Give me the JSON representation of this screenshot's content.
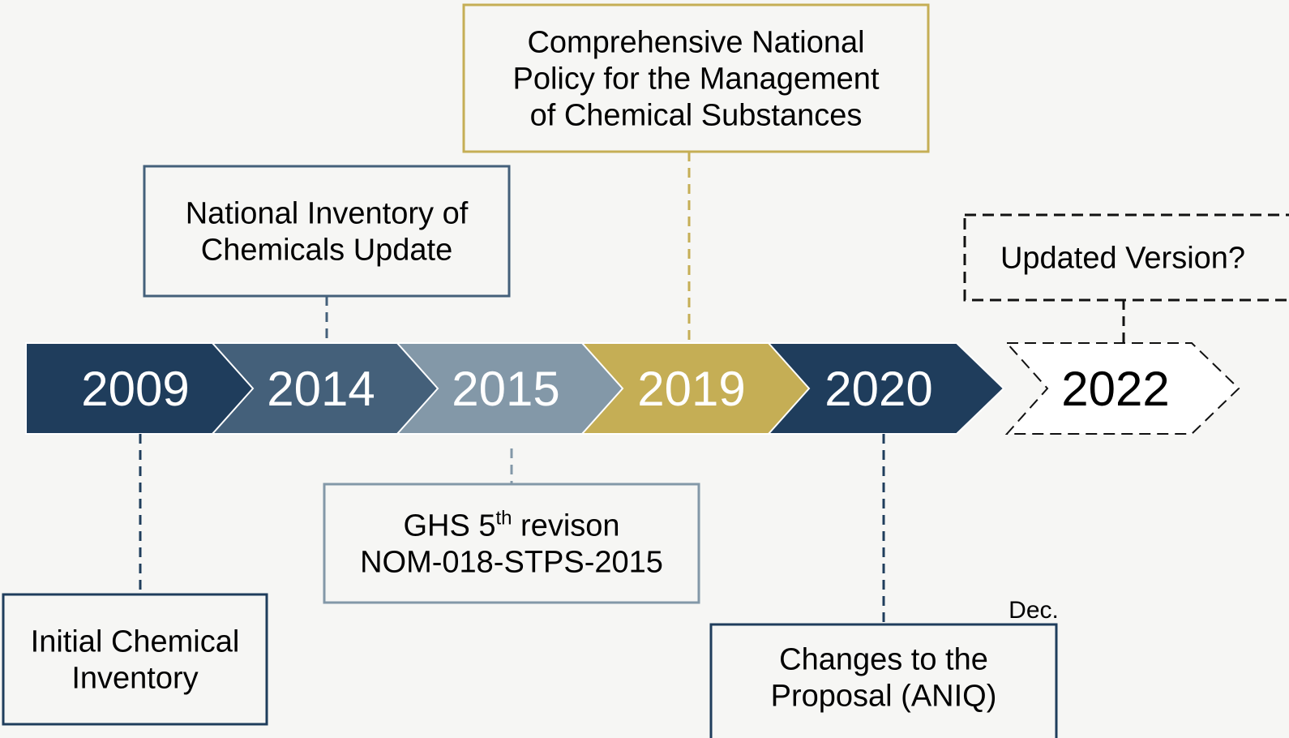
{
  "timeline": {
    "years": [
      "2009",
      "2014",
      "2015",
      "2019",
      "2020",
      "2022"
    ]
  },
  "events": [
    {
      "lines": [
        "Initial Chemical",
        "Inventory"
      ]
    },
    {
      "lines": [
        "National Inventory of",
        "Chemicals Update"
      ]
    },
    {
      "lines": [
        [
          "GHS 5",
          "th",
          " revison"
        ],
        "NOM-018-STPS-2015"
      ]
    },
    {
      "lines": [
        "Comprehensive National",
        "Policy for the Management",
        "of Chemical Substances"
      ]
    },
    {
      "lines": [
        "Changes to the",
        "Proposal (ANIQ)"
      ],
      "note": "Dec."
    },
    {
      "lines": [
        "Updated Version?"
      ]
    }
  ]
}
